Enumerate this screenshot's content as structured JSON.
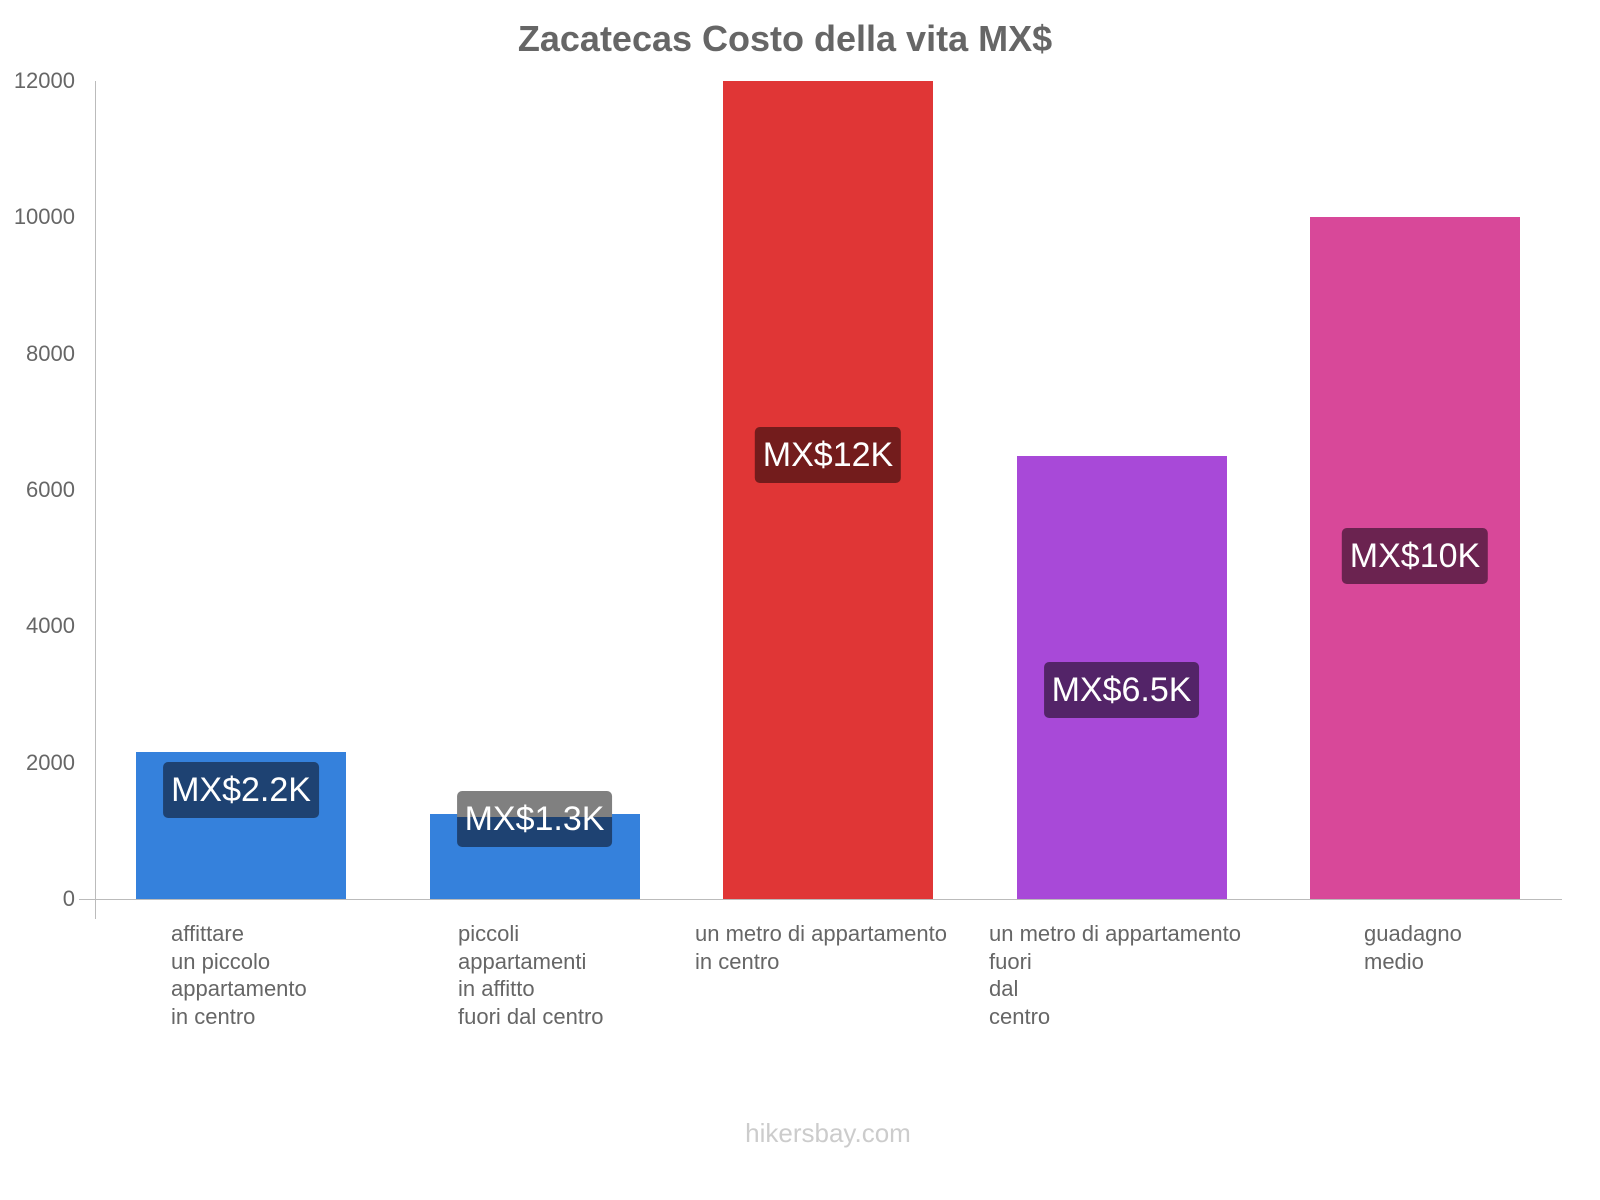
{
  "chart_data": {
    "type": "bar",
    "title": "Zacatecas Costo della vita MX$",
    "xlabel": "",
    "ylabel": "",
    "ylim": [
      0,
      12000
    ],
    "yticks": [
      "0",
      "2000",
      "4000",
      "6000",
      "8000",
      "10000",
      "12000"
    ],
    "grid": false,
    "legend": null,
    "categories": [
      "affittare un piccolo appartamento in centro",
      "piccoli appartamenti in affitto fuori dal centro",
      "un metro di appartamento in centro",
      "un metro di appartamento fuori dal centro",
      "guadagno medio"
    ],
    "category_lines": [
      "affittare\nun piccolo\nappartamento\nin centro",
      "piccoli\nappartamenti\nin affitto\nfuori dal centro",
      "un metro di appartamento\nin centro",
      "un metro di appartamento\nfuori\ndal\ncentro",
      "guadagno\nmedio"
    ],
    "values": [
      2150,
      1250,
      12000,
      6500,
      10000
    ],
    "data_labels": [
      "MX$2.2K",
      "MX$1.3K",
      "MX$12K",
      "MX$6.5K",
      "MX$10K"
    ],
    "colors": [
      "#3581dc",
      "#3581dc",
      "#e03636",
      "#a849d8",
      "#d84899"
    ],
    "label_bg_colors": [
      "#1e4272",
      "#1e4272",
      "#731c1c",
      "#532468",
      "#6b2350"
    ]
  },
  "watermark": "hikersbay.com"
}
